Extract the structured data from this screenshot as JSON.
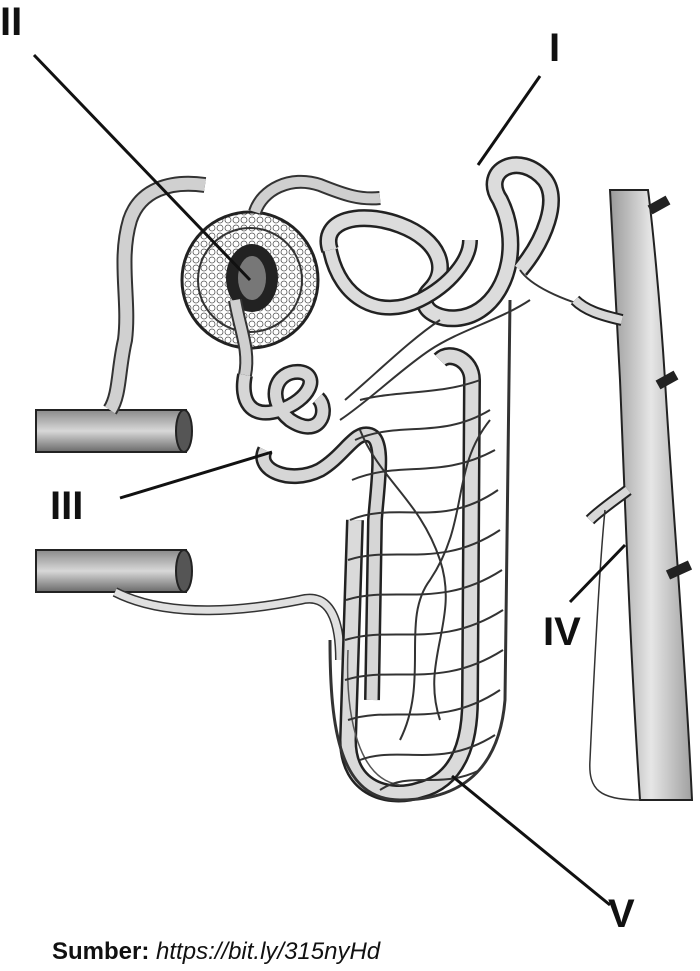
{
  "labels": {
    "I": "I",
    "II": "II",
    "III": "III",
    "IV": "IV",
    "V": "V"
  },
  "caption": {
    "prefix": "Sumber:",
    "url": "https://bit.ly/315nyHd"
  }
}
